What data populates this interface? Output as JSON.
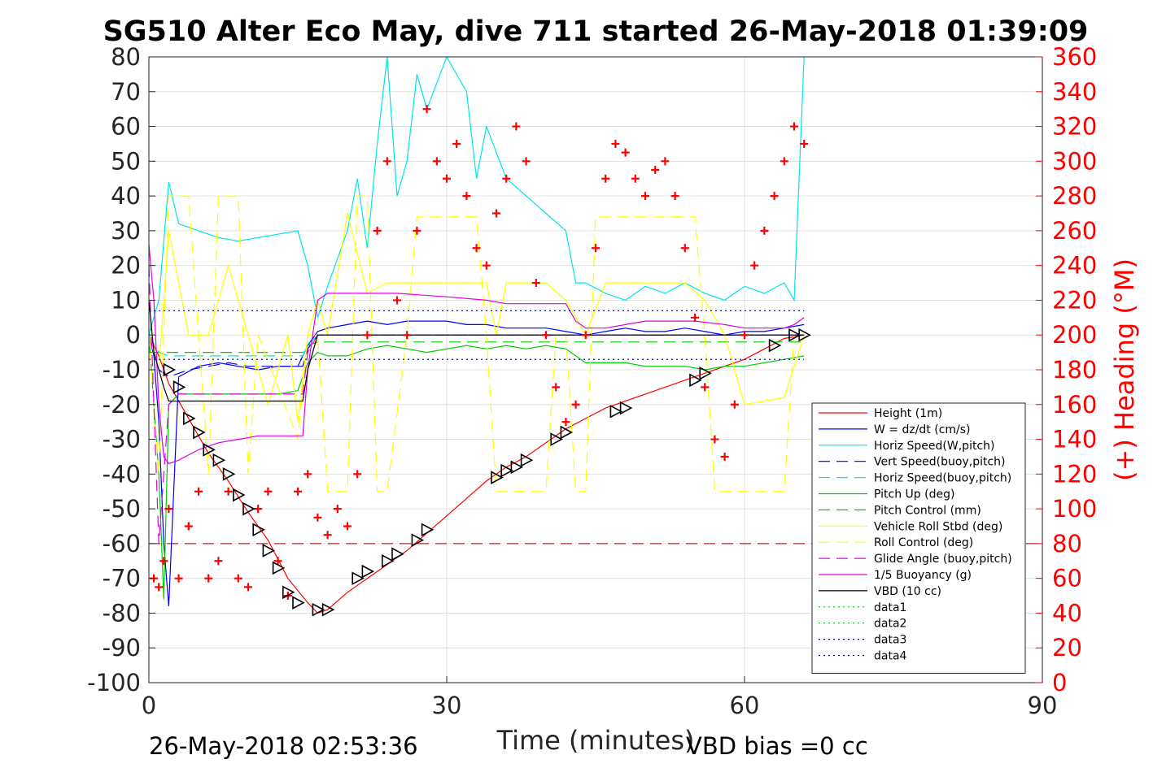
{
  "chart_data": {
    "type": "line",
    "title": "SG510 Alter Eco May, dive 711 started 26-May-2018 01:39:09",
    "xlabel": "Time (minutes)",
    "ylabel_right": "(+) Heading (°M)",
    "xlim": [
      0,
      90
    ],
    "ylim": [
      -100,
      80
    ],
    "ylim_right": [
      0,
      360
    ],
    "x_ticks": [
      "0",
      "30",
      "60",
      "90"
    ],
    "y_ticks": [
      "80",
      "70",
      "60",
      "50",
      "40",
      "30",
      "20",
      "10",
      "0",
      "-10",
      "-20",
      "-30",
      "-40",
      "-50",
      "-60",
      "-70",
      "-80",
      "-90",
      "-100"
    ],
    "y_right_ticks": [
      "360",
      "340",
      "320",
      "300",
      "280",
      "260",
      "240",
      "220",
      "200",
      "180",
      "160",
      "140",
      "120",
      "100",
      "80",
      "60",
      "40",
      "20",
      "0"
    ],
    "grid": true,
    "legend_position": "bottom-right",
    "footer_left": "26-May-2018 02:53:36",
    "footer_right": "VBD bias =0 cc",
    "series": [
      {
        "name": "Height (1m)",
        "color": "#ff0000",
        "style": "solid",
        "x": [
          0,
          1,
          2,
          4,
          6,
          8,
          10,
          12,
          14,
          16,
          17,
          18,
          20,
          22,
          24,
          26,
          28,
          30,
          32,
          34,
          36,
          38,
          40,
          42,
          44,
          46,
          48,
          50,
          52,
          54,
          56,
          58,
          60,
          62,
          64,
          66
        ],
        "y": [
          0,
          -6,
          -14,
          -24,
          -34,
          -42,
          -51,
          -59,
          -70,
          -77,
          -80,
          -79,
          -74,
          -70,
          -66,
          -62,
          -57,
          -52,
          -47,
          -42,
          -38,
          -35,
          -31,
          -27,
          -24,
          -21,
          -19,
          -17,
          -15,
          -13,
          -11,
          -9,
          -7,
          -4,
          -1,
          0
        ]
      },
      {
        "name": "W = dz/dt (cm/s)",
        "color": "#0000ff",
        "style": "solid",
        "x": [
          0,
          0.5,
          1,
          1.5,
          2,
          3,
          5,
          7,
          9,
          11,
          13,
          15,
          16,
          17,
          18,
          20,
          22,
          24,
          26,
          28,
          30,
          32,
          34,
          36,
          38,
          40,
          42,
          44,
          46,
          48,
          50,
          52,
          54,
          56,
          58,
          60,
          62,
          64,
          66
        ],
        "y": [
          0,
          -6,
          -25,
          -60,
          -78,
          -12,
          -9,
          -8,
          -9,
          -10,
          -9,
          -9,
          -3,
          1,
          2,
          3,
          4,
          3,
          4,
          4,
          4,
          3,
          3,
          2,
          2,
          2,
          1,
          0,
          1,
          2,
          1,
          1,
          2,
          1,
          0,
          1,
          1,
          2,
          3
        ]
      },
      {
        "name": "Horiz Speed(W,pitch)",
        "color": "#00e5e5",
        "style": "solid",
        "x": [
          0,
          1,
          2,
          3,
          5,
          7,
          9,
          11,
          13,
          15,
          16,
          17,
          18,
          20,
          21,
          22,
          23,
          24,
          25,
          26,
          27,
          28,
          30,
          32,
          33,
          34,
          36,
          38,
          40,
          42,
          43,
          44,
          46,
          48,
          50,
          52,
          54,
          56,
          58,
          60,
          62,
          64,
          65,
          66
        ],
        "y": [
          0,
          10,
          44,
          32,
          30,
          28,
          27,
          28,
          29,
          30,
          20,
          5,
          14,
          30,
          45,
          25,
          55,
          80,
          40,
          50,
          75,
          65,
          80,
          70,
          45,
          60,
          45,
          40,
          35,
          30,
          15,
          15,
          12,
          10,
          14,
          12,
          15,
          12,
          10,
          14,
          12,
          15,
          10,
          80
        ]
      },
      {
        "name": "Vert Speed(buoy,pitch)",
        "color": "#0000ff",
        "style": "dashed",
        "x": [
          0,
          1,
          2,
          4,
          6,
          8,
          10,
          12,
          14,
          15.5,
          16,
          17,
          20,
          30,
          40,
          50,
          60,
          66
        ],
        "y": [
          0,
          -10,
          -12,
          -10,
          -9,
          -8,
          -9,
          -9,
          -9,
          -9,
          -4,
          0,
          0,
          0,
          0,
          0,
          0,
          0
        ]
      },
      {
        "name": "Horiz Speed(buoy,pitch)",
        "color": "#00e5e5",
        "style": "dashed",
        "x": [
          0,
          1,
          2,
          4,
          8,
          12,
          15.5,
          16,
          17,
          20,
          66
        ],
        "y": [
          0,
          -5,
          -6,
          -6,
          -6,
          -6,
          -6,
          -3,
          0,
          0,
          0
        ]
      },
      {
        "name": "Pitch Up (deg)",
        "color": "#00cc00",
        "style": "solid",
        "x": [
          0,
          1,
          1.5,
          2,
          3,
          5,
          7,
          9,
          11,
          13,
          15,
          16,
          17,
          18,
          20,
          22,
          24,
          26,
          28,
          30,
          32,
          34,
          36,
          38,
          40,
          42,
          44,
          46,
          48,
          50,
          52,
          54,
          56,
          58,
          60,
          62,
          64,
          66
        ],
        "y": [
          0,
          -40,
          -76,
          -20,
          -17,
          -17,
          -17,
          -17,
          -17,
          -17,
          -16,
          -8,
          -5,
          -6,
          -6,
          -4,
          -3,
          -4,
          -5,
          -4,
          -3,
          -4,
          -3,
          -4,
          -3,
          -4,
          -8,
          -8,
          -8,
          -9,
          -9,
          -9,
          -10,
          -9,
          -9,
          -8,
          -7,
          -6
        ]
      },
      {
        "name": "Pitch Control (mm)",
        "color": "#00cc00",
        "style": "dashed",
        "x": [
          0,
          1,
          2,
          15.5,
          16,
          17,
          66
        ],
        "y": [
          -5,
          -5,
          -5,
          -5,
          -3,
          -2,
          -2
        ]
      },
      {
        "name": "Vehicle Roll Stbd (deg)",
        "color": "#ffff00",
        "style": "solid",
        "x": [
          0,
          1,
          2,
          4,
          6,
          8,
          10,
          12,
          14,
          15,
          16,
          17,
          18,
          20,
          22,
          24,
          26,
          28,
          30,
          32,
          34,
          35,
          36,
          38,
          40,
          42,
          44,
          46,
          48,
          50,
          52,
          54,
          56,
          58,
          60,
          62,
          64,
          66
        ],
        "y": [
          0,
          -10,
          30,
          0,
          0,
          20,
          0,
          -20,
          0,
          -25,
          0,
          10,
          0,
          35,
          12,
          15,
          15,
          15,
          15,
          15,
          15,
          0,
          15,
          15,
          15,
          10,
          0,
          15,
          15,
          15,
          15,
          15,
          10,
          0,
          -20,
          -19,
          -18,
          0
        ]
      },
      {
        "name": "Roll Control (deg)",
        "color": "#ffff00",
        "style": "dashed",
        "x": [
          0,
          1,
          2,
          4,
          5,
          6,
          7,
          9,
          10,
          11,
          15,
          16,
          17,
          18,
          20,
          21,
          22,
          23,
          24,
          26,
          27,
          28,
          30,
          33,
          34,
          35,
          36,
          39,
          40,
          41,
          42,
          43,
          44,
          45,
          47,
          48,
          52,
          55,
          56,
          57,
          58,
          60,
          62,
          64,
          65
        ],
        "y": [
          0,
          -40,
          40,
          40,
          0,
          -40,
          40,
          40,
          -40,
          0,
          -30,
          0,
          0,
          -45,
          -45,
          40,
          40,
          -45,
          -45,
          0,
          34,
          34,
          34,
          34,
          0,
          -45,
          -45,
          -45,
          -45,
          0,
          0,
          -45,
          -45,
          34,
          34,
          34,
          34,
          34,
          0,
          -45,
          -45,
          -45,
          -45,
          -45,
          0
        ]
      },
      {
        "name": "Glide Angle (buoy,pitch)",
        "color": "#e000e0",
        "style": "dashed",
        "x": [
          0,
          1,
          2,
          3,
          6,
          10,
          15.5,
          16,
          17,
          66
        ],
        "y": [
          20,
          -60,
          -20,
          -17,
          -17,
          -17,
          -17,
          -5,
          0,
          0
        ]
      },
      {
        "name": "1/5 Buoyancy (g)",
        "color": "#e000e0",
        "style": "solid",
        "x": [
          0,
          0.5,
          1,
          1.5,
          2,
          3,
          5,
          7,
          9,
          11,
          13,
          15.5,
          16,
          17,
          18,
          20,
          25,
          30,
          34,
          36,
          38,
          40,
          42,
          43,
          44,
          46,
          48,
          50,
          55,
          58,
          60,
          62,
          64,
          65,
          66
        ],
        "y": [
          26,
          10,
          -20,
          -35,
          -37,
          -36,
          -33,
          -31,
          -30,
          -29,
          -29,
          -29,
          -10,
          10,
          12,
          12,
          12,
          11,
          10,
          9,
          9,
          9,
          9,
          4,
          2,
          2,
          3,
          4,
          4,
          3,
          2,
          2,
          2,
          3,
          5
        ]
      },
      {
        "name": "VBD (10 cc)",
        "color": "#000000",
        "style": "solid",
        "x": [
          0,
          0.5,
          1,
          1.5,
          2,
          4,
          8,
          12,
          15.5,
          16,
          17,
          30,
          66
        ],
        "y": [
          10,
          -5,
          -10,
          -15,
          -19,
          -19,
          -19,
          -19,
          -19,
          -10,
          0,
          0,
          0
        ]
      },
      {
        "name": "data1",
        "color": "#00cc00",
        "style": "dotted",
        "x": [],
        "y": []
      },
      {
        "name": "data2",
        "color": "#00cc00",
        "style": "dotted",
        "x": [],
        "y": []
      },
      {
        "name": "data3",
        "color": "#00008b",
        "style": "dotted",
        "x": [
          0,
          66
        ],
        "y": [
          7,
          7
        ]
      },
      {
        "name": "data4",
        "color": "#00008b",
        "style": "dotted",
        "x": [
          0,
          66
        ],
        "y": [
          -7,
          -7
        ]
      }
    ],
    "reference_line": {
      "color": "#8b0000",
      "style": "dashed",
      "y": -60
    },
    "heading_points": {
      "color": "#ff0000",
      "marker": "+",
      "x": [
        0.5,
        1,
        1.5,
        2,
        3,
        4,
        5,
        6,
        7,
        8,
        9,
        10,
        11,
        12,
        13,
        14,
        15,
        16,
        17,
        18,
        19,
        20,
        21,
        22,
        23,
        24,
        25,
        26,
        27,
        28,
        29,
        30,
        31,
        32,
        33,
        34,
        35,
        36,
        37,
        38,
        39,
        40,
        41,
        42,
        43,
        44,
        45,
        46,
        47,
        48,
        49,
        50,
        51,
        52,
        53,
        54,
        55,
        56,
        57,
        58,
        59,
        60,
        61,
        62,
        63,
        64,
        65,
        66
      ],
      "y": [
        60,
        55,
        70,
        100,
        60,
        90,
        110,
        60,
        70,
        110,
        60,
        55,
        100,
        110,
        70,
        50,
        110,
        120,
        95,
        85,
        100,
        90,
        120,
        200,
        260,
        300,
        220,
        200,
        260,
        330,
        300,
        290,
        310,
        280,
        250,
        240,
        270,
        290,
        320,
        300,
        230,
        200,
        170,
        150,
        160,
        200,
        250,
        290,
        310,
        305,
        290,
        280,
        295,
        300,
        280,
        250,
        210,
        170,
        140,
        130,
        160,
        200,
        240,
        260,
        280,
        300,
        320,
        310
      ]
    },
    "glider_markers": {
      "color": "#000000",
      "marker": "triangle",
      "x": [
        2,
        3,
        4,
        5,
        6,
        7,
        8,
        9,
        10,
        11,
        12,
        13,
        14,
        15,
        17,
        18,
        21,
        22,
        24,
        25,
        27,
        28,
        35,
        36,
        37,
        38,
        41,
        42,
        47,
        48,
        55,
        56,
        63,
        65,
        66
      ],
      "y": [
        -10,
        -15,
        -24,
        -28,
        -33,
        -36,
        -40,
        -46,
        -50,
        -56,
        -62,
        -67,
        -74,
        -77,
        -79,
        -79,
        -70,
        -68,
        -65,
        -63,
        -59,
        -56,
        -41,
        -39,
        -38,
        -36,
        -30,
        -28,
        -22,
        -21,
        -13,
        -11,
        -3,
        0,
        0
      ]
    }
  }
}
